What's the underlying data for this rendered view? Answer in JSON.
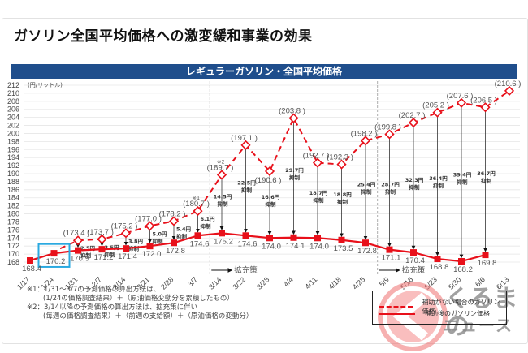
{
  "page_title": "ガソリン全国平均価格への激変緩和事業の効果",
  "chart_data": {
    "type": "line",
    "title": "レギュラーガソリン・全国平均価格",
    "ylabel": "(円/リットル)",
    "ylim": [
      168,
      212
    ],
    "yticks": [
      168,
      170,
      172,
      174,
      176,
      178,
      180,
      182,
      184,
      186,
      188,
      190,
      192,
      194,
      196,
      198,
      200,
      202,
      204,
      206,
      208,
      210,
      212
    ],
    "categories": [
      "1/17",
      "1/24",
      "1/31",
      "2/7",
      "2/14",
      "2/21",
      "2/28",
      "3/7",
      "3/14",
      "3/22",
      "3/28",
      "4/4",
      "4/11",
      "4/18",
      "4/25",
      "5/9",
      "5/16",
      "5/23",
      "5/30",
      "6/6",
      "6/13"
    ],
    "grid": true,
    "series": [
      {
        "name": "補助がない場合のガソリン価格",
        "style": "dashed",
        "color": "#e8101a",
        "values": [
          null,
          null,
          173.4,
          173.7,
          175.2,
          177.0,
          178.2,
          180.7,
          189.7,
          197.1,
          190.6,
          203.8,
          192.7,
          192.3,
          198.2,
          199.8,
          202.7,
          205.2,
          207.6,
          206.5,
          210.6
        ],
        "labels": [
          "",
          "",
          "(173.4 )",
          "(173.7 )",
          "(175.2 )",
          "(177.0 )",
          "(178.2 )",
          "(180.7 )",
          "(189.7 )",
          "(197.1 )",
          "(190.6 )",
          "(203.8 )",
          "(192.7 )",
          "(192.3 )",
          "(198.2 )",
          "(199.8 )",
          "(202.7 )",
          "(205.2 )",
          "(207.6 )",
          "(206.5 )",
          "(210.6 )"
        ]
      },
      {
        "name": "補助後のガソリン価格",
        "style": "solid",
        "color": "#e8101a",
        "values": [
          168.4,
          170.2,
          170.9,
          171.2,
          171.4,
          172.0,
          172.8,
          174.6,
          175.2,
          174.6,
          174.0,
          174.1,
          174.0,
          173.5,
          172.8,
          171.1,
          170.4,
          168.8,
          168.2,
          169.8,
          null
        ],
        "labels": [
          "168.4",
          "170.2",
          "170.9",
          "171.2",
          "171.4",
          "172.0",
          "172.8",
          "174.6",
          "175.2",
          "174.6",
          "174.0",
          "174.1",
          "174.0",
          "173.5",
          "172.8",
          "171.1",
          "170.4",
          "168.8",
          "168.2",
          "169.8",
          ""
        ]
      }
    ],
    "suppression": [
      {
        "x": "1/31",
        "amount": "2.5円",
        "label": "抑制"
      },
      {
        "x": "2/7",
        "amount": "2.5円",
        "label": "抑制"
      },
      {
        "x": "2/14",
        "amount": "3.8円",
        "label": "抑制"
      },
      {
        "x": "2/21",
        "amount": "5.0円",
        "label": "抑制"
      },
      {
        "x": "2/28",
        "amount": "5.4円",
        "label": "抑制"
      },
      {
        "x": "3/7",
        "amount": "6.1円",
        "label": "抑制"
      },
      {
        "x": "3/14",
        "amount": "14.5円",
        "label": "抑制"
      },
      {
        "x": "3/22",
        "amount": "22.5円",
        "label": "抑制"
      },
      {
        "x": "3/28",
        "amount": "16.6円",
        "label": "抑制"
      },
      {
        "x": "4/4",
        "amount": "29.7円",
        "label": "抑制"
      },
      {
        "x": "4/11",
        "amount": "18.7円",
        "label": "抑制"
      },
      {
        "x": "4/18",
        "amount": "18.8円",
        "label": "抑制"
      },
      {
        "x": "4/25",
        "amount": "25.4円",
        "label": "抑制"
      },
      {
        "x": "5/9",
        "amount": "28.7円",
        "label": "抑制"
      },
      {
        "x": "5/16",
        "amount": "32.3円",
        "label": "抑制"
      },
      {
        "x": "5/23",
        "amount": "36.4円",
        "label": "抑制"
      },
      {
        "x": "5/30",
        "amount": "39.4円",
        "label": "抑制"
      },
      {
        "x": "6/6",
        "amount": "36.7円",
        "label": "抑制"
      }
    ],
    "annotations": {
      "note1_marker": "※1",
      "note2_marker": "※2",
      "expansion_label": "拡充策",
      "highlight_category": "1/24"
    },
    "legend": {
      "position": "bottom-right",
      "items": [
        "補助がない場合のガソリン価格",
        "補助後のガソリン価格"
      ]
    }
  },
  "notes": [
    "※1：1/31～3/7の予測価格の算出方法は、",
    "(1/24の価格調査結果）＋（原油価格変動分を累積したもの）",
    "※2：3/14以降の予測価格の算出方法は、拡充策に伴い",
    "(毎週の価格調査結果）＋（前週の支給額）＋（原油価格の変動分）"
  ],
  "watermark": {
    "line1": "くるまの",
    "line2": "ニュース"
  }
}
